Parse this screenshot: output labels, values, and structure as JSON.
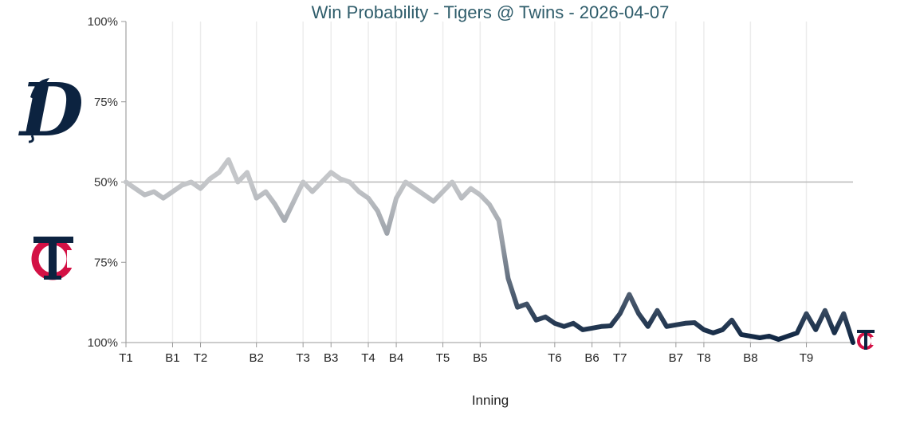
{
  "chart_data": {
    "type": "line",
    "title": "Win Probability - Tigers @ Twins - 2026-04-07",
    "xlabel": "Inning",
    "ylabel": "",
    "y_tick_labels": [
      "100%",
      "75%",
      "50%",
      "75%",
      "100%"
    ],
    "x_tick_labels": [
      "T1",
      "B1",
      "T2",
      "B2",
      "T3",
      "B3",
      "T4",
      "B4",
      "T5",
      "B5",
      "T6",
      "B6",
      "T7",
      "B7",
      "T8",
      "B8",
      "T9"
    ],
    "x_tick_positions": [
      0,
      5,
      8,
      14,
      19,
      22,
      26,
      29,
      34,
      38,
      46,
      50,
      53,
      59,
      62,
      67,
      73
    ],
    "ylim": [
      0,
      100
    ],
    "y_meaning": "Twins win probability (%); top half of chart = Tigers favored",
    "midline": 50,
    "grid": "vertical lines at inning ticks",
    "series": [
      {
        "values": [
          50,
          52,
          54,
          53,
          55,
          53,
          51,
          50,
          52,
          49,
          47,
          43,
          50,
          47,
          55,
          53,
          57,
          62,
          56,
          50,
          53,
          50,
          47,
          49,
          50,
          53,
          55,
          59,
          66,
          55,
          50,
          52,
          54,
          56,
          53,
          50,
          55,
          52,
          54,
          57,
          62,
          80,
          89,
          88,
          93,
          92,
          94,
          95,
          94,
          96,
          95.5,
          95,
          94.8,
          91,
          85,
          91,
          95,
          90,
          95,
          94.5,
          94,
          93.8,
          96,
          97,
          96,
          93,
          97.5,
          98,
          98.5,
          98,
          99,
          98,
          97,
          91,
          96,
          90,
          97,
          91,
          100
        ],
        "color_start": "#c4c6c9",
        "color_end": "#0c2340"
      }
    ]
  },
  "teams": {
    "away": {
      "name": "Tigers",
      "logo_letter": "D",
      "color": "#0c2340"
    },
    "home": {
      "name": "Twins",
      "logo_letter": "TC",
      "color": "#0c2340",
      "accent": "#d31145"
    }
  },
  "colors": {
    "title": "#2f5d6b",
    "grid": "#ececec",
    "midline": "#b8b8b8",
    "axis": "#999999"
  }
}
